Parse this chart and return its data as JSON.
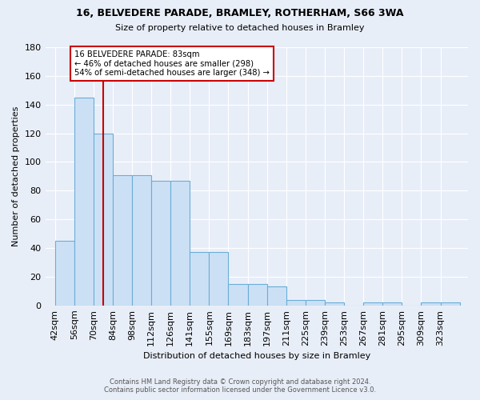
{
  "title1": "16, BELVEDERE PARADE, BRAMLEY, ROTHERHAM, S66 3WA",
  "title2": "Size of property relative to detached houses in Bramley",
  "xlabel": "Distribution of detached houses by size in Bramley",
  "ylabel": "Number of detached properties",
  "bar_labels": [
    "42sqm",
    "56sqm",
    "70sqm",
    "84sqm",
    "98sqm",
    "112sqm",
    "126sqm",
    "141sqm",
    "155sqm",
    "169sqm",
    "183sqm",
    "197sqm",
    "211sqm",
    "225sqm",
    "239sqm",
    "253sqm",
    "267sqm",
    "281sqm",
    "295sqm",
    "309sqm",
    "323sqm"
  ],
  "bar_values": [
    45,
    145,
    120,
    91,
    91,
    87,
    87,
    37,
    37,
    15,
    15,
    13,
    4,
    4,
    2,
    0,
    2,
    2,
    0,
    2,
    2
  ],
  "ylim": [
    0,
    180
  ],
  "yticks": [
    0,
    20,
    40,
    60,
    80,
    100,
    120,
    140,
    160,
    180
  ],
  "bar_color": "#cce0f5",
  "bar_edge_color": "#6aaed6",
  "redline_x": 77,
  "annotation_text": "16 BELVEDERE PARADE: 83sqm\n← 46% of detached houses are smaller (298)\n54% of semi-detached houses are larger (348) →",
  "annotation_box_color": "#ffffff",
  "annotation_box_edge_color": "#cc0000",
  "background_color": "#e8eef8",
  "grid_color": "#ffffff"
}
